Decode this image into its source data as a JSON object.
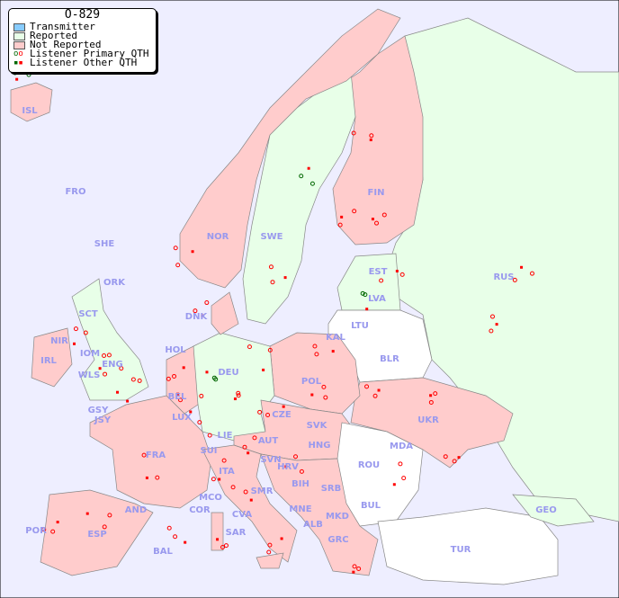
{
  "legend": {
    "title": "O-829",
    "items": [
      {
        "label": "Transmitter",
        "color": "#88ccff"
      },
      {
        "label": "Reported",
        "color": "#e8ffe8"
      },
      {
        "label": "Not Reported",
        "color": "#ffcccc"
      },
      {
        "label": "Listener Primary QTH",
        "symbol": "circle"
      },
      {
        "label": "Listener Other QTH",
        "symbol": "square"
      }
    ]
  },
  "colors": {
    "sea": "#eeeeff",
    "primary_marker": "#ff0000",
    "reported_marker": "#006600"
  },
  "countries": {
    "ISL": "ISL",
    "FRO": "FRO",
    "SHE": "SHE",
    "ORK": "ORK",
    "NOR": "NOR",
    "SWE": "SWE",
    "FIN": "FIN",
    "RUS": "RUS",
    "EST": "EST",
    "LVA": "LVA",
    "LTU": "LTU",
    "KAL": "KAL",
    "BLR": "BLR",
    "DNK": "DNK",
    "HOL": "HOL",
    "DEU": "DEU",
    "POL": "POL",
    "UKR": "UKR",
    "IRL": "IRL",
    "NIR": "NIR",
    "SCT": "SCT",
    "IOM": "IOM",
    "WLS": "WLS",
    "ENG": "ENG",
    "GSY": "GSY",
    "JSY": "JSY",
    "BEL": "BEL",
    "LUX": "LUX",
    "FRA": "FRA",
    "SUI": "SUI",
    "LIE": "LIE",
    "AUT": "AUT",
    "CZE": "CZE",
    "SVK": "SVK",
    "HNG": "HNG",
    "MDA": "MDA",
    "ROU": "ROU",
    "SVN": "SVN",
    "HRV": "HRV",
    "BIH": "BIH",
    "SRB": "SRB",
    "BUL": "BUL",
    "MNE": "MNE",
    "MKD": "MKD",
    "ALB": "ALB",
    "GRC": "GRC",
    "TUR": "TUR",
    "GEO": "GEO",
    "ITA": "ITA",
    "SMR": "SMR",
    "MCO": "MCO",
    "COR": "COR",
    "CVA": "CVA",
    "SAR": "SAR",
    "AND": "AND",
    "ESP": "ESP",
    "POR": "POR",
    "BAL": "BAL"
  }
}
